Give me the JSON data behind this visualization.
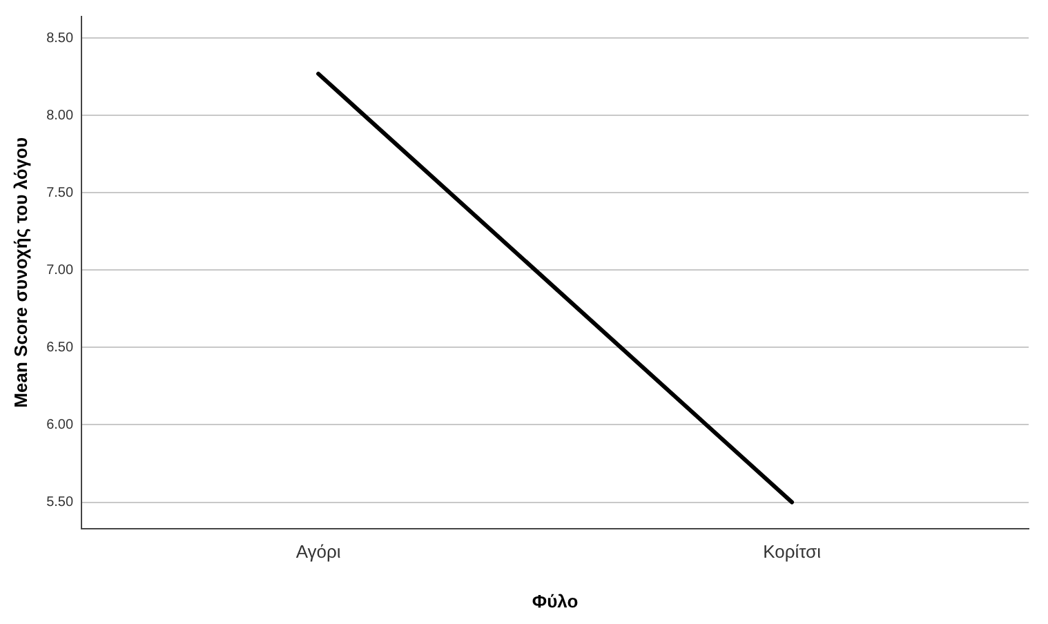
{
  "chart_data": {
    "type": "line",
    "xlabel": "Φύλο",
    "ylabel": "Mean Score συνοχής του λόγου",
    "categories": [
      "Αγόρι",
      "Κορίτσι"
    ],
    "series": [
      {
        "color": "#000000",
        "values": [
          8.27,
          5.5
        ]
      }
    ],
    "ylim": [
      5.33,
      8.64
    ],
    "yticks": [
      {
        "value": 5.5,
        "label": "5.50"
      },
      {
        "value": 6,
        "label": "6.00"
      },
      {
        "value": 6.5,
        "label": "6.50"
      },
      {
        "value": 7,
        "label": "7.00"
      },
      {
        "value": 7.5,
        "label": "7.50"
      },
      {
        "value": 8,
        "label": "8.00"
      },
      {
        "value": 8.5,
        "label": "8.50"
      }
    ],
    "grid": "y",
    "legend": false,
    "marker": "none",
    "line_style": "solid"
  }
}
